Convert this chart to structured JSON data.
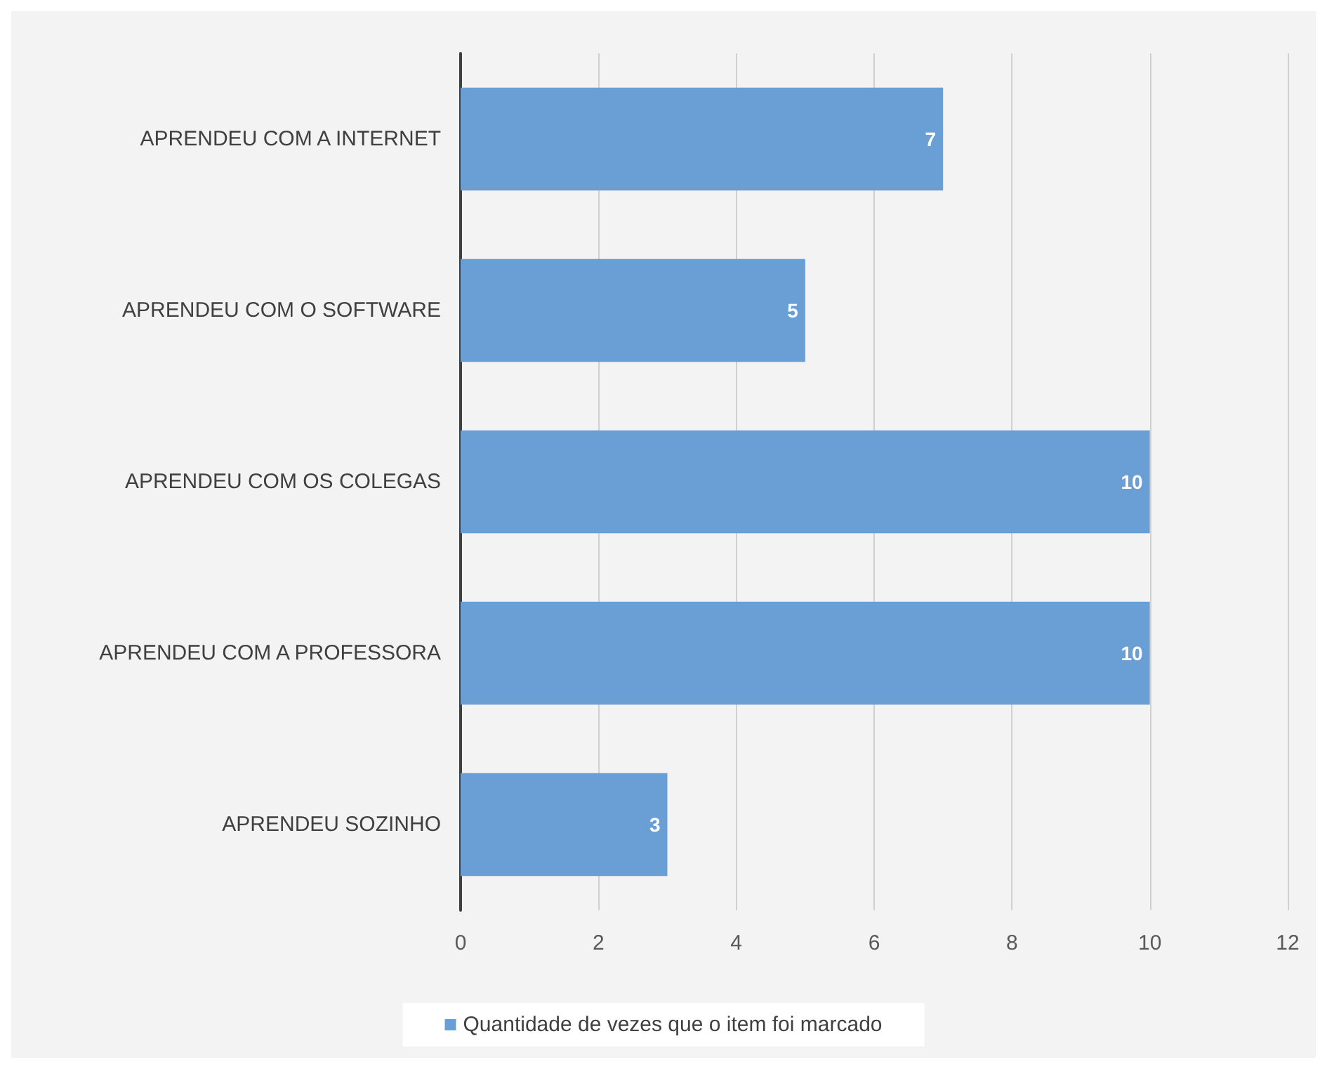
{
  "chart_data": {
    "type": "bar",
    "orientation": "horizontal",
    "categories": [
      "APRENDEU COM A INTERNET",
      "APRENDEU COM O SOFTWARE",
      "APRENDEU COM OS COLEGAS",
      "APRENDEU COM A PROFESSORA",
      "APRENDEU SOZINHO"
    ],
    "series": [
      {
        "name": "Quantidade de vezes que o item foi marcado",
        "color": "#6a9fd6",
        "values": [
          7,
          5,
          10,
          10,
          3
        ]
      }
    ],
    "xlim": [
      0,
      12
    ],
    "xticks": [
      0,
      2,
      4,
      6,
      8,
      10,
      12
    ],
    "grid": "x",
    "legend": "bottom",
    "data_labels": true
  }
}
